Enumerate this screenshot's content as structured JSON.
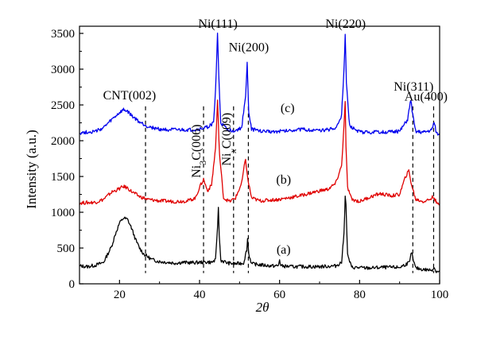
{
  "chart_data": {
    "type": "line",
    "title": "",
    "xlabel": "2θ",
    "ylabel": "Intensity (a.u.)",
    "xlim": [
      10,
      100
    ],
    "ylim": [
      0,
      3600
    ],
    "x_ticks": [
      20,
      40,
      60,
      80,
      100
    ],
    "y_ticks": [
      0,
      500,
      1000,
      1500,
      2000,
      2500,
      3000,
      3500
    ],
    "grid": false,
    "legend": "none",
    "series": [
      {
        "name": "(a)",
        "color": "#000000",
        "points": [
          [
            10,
            250
          ],
          [
            12,
            240
          ],
          [
            14,
            260
          ],
          [
            16,
            300
          ],
          [
            18,
            520
          ],
          [
            19,
            700
          ],
          [
            20,
            850
          ],
          [
            21,
            920
          ],
          [
            22,
            900
          ],
          [
            23,
            780
          ],
          [
            24,
            620
          ],
          [
            25,
            500
          ],
          [
            26,
            420
          ],
          [
            28,
            340
          ],
          [
            30,
            310
          ],
          [
            32,
            300
          ],
          [
            34,
            290
          ],
          [
            36,
            300
          ],
          [
            38,
            295
          ],
          [
            40,
            300
          ],
          [
            42,
            305
          ],
          [
            43,
            300
          ],
          [
            44,
            330
          ],
          [
            44.5,
            800
          ],
          [
            44.7,
            1050
          ],
          [
            44.9,
            700
          ],
          [
            45.3,
            330
          ],
          [
            47,
            290
          ],
          [
            49,
            280
          ],
          [
            51,
            290
          ],
          [
            51.8,
            480
          ],
          [
            52,
            630
          ],
          [
            52.3,
            420
          ],
          [
            53,
            280
          ],
          [
            56,
            260
          ],
          [
            58,
            250
          ],
          [
            59.7,
            250
          ],
          [
            60,
            340
          ],
          [
            60.3,
            250
          ],
          [
            63,
            240
          ],
          [
            66,
            240
          ],
          [
            70,
            240
          ],
          [
            74,
            250
          ],
          [
            75.5,
            300
          ],
          [
            76.1,
            700
          ],
          [
            76.4,
            1250
          ],
          [
            76.6,
            1100
          ],
          [
            77,
            400
          ],
          [
            78,
            230
          ],
          [
            82,
            220
          ],
          [
            86,
            230
          ],
          [
            90,
            230
          ],
          [
            92.5,
            300
          ],
          [
            93,
            450
          ],
          [
            93.3,
            350
          ],
          [
            94,
            220
          ],
          [
            96,
            200
          ],
          [
            98,
            190
          ],
          [
            98.6,
            230
          ],
          [
            99,
            180
          ],
          [
            100,
            170
          ]
        ]
      },
      {
        "name": "(b)",
        "color": "#e00000",
        "points": [
          [
            10,
            1130
          ],
          [
            14,
            1140
          ],
          [
            16,
            1180
          ],
          [
            18,
            1280
          ],
          [
            20,
            1330
          ],
          [
            21,
            1360
          ],
          [
            22,
            1340
          ],
          [
            23,
            1290
          ],
          [
            25,
            1220
          ],
          [
            27,
            1180
          ],
          [
            30,
            1160
          ],
          [
            34,
            1150
          ],
          [
            37,
            1160
          ],
          [
            39,
            1200
          ],
          [
            40,
            1350
          ],
          [
            41,
            1460
          ],
          [
            42,
            1300
          ],
          [
            43,
            1380
          ],
          [
            44,
            1900
          ],
          [
            44.5,
            2550
          ],
          [
            45,
            1800
          ],
          [
            46,
            1200
          ],
          [
            47.5,
            1150
          ],
          [
            49,
            1200
          ],
          [
            50.5,
            1400
          ],
          [
            51.5,
            1750
          ],
          [
            52,
            1480
          ],
          [
            53,
            1200
          ],
          [
            55,
            1160
          ],
          [
            60,
            1180
          ],
          [
            65,
            1230
          ],
          [
            70,
            1300
          ],
          [
            72,
            1320
          ],
          [
            74,
            1400
          ],
          [
            75.5,
            1650
          ],
          [
            76.1,
            2200
          ],
          [
            76.4,
            2560
          ],
          [
            76.6,
            1900
          ],
          [
            77,
            1350
          ],
          [
            78,
            1180
          ],
          [
            80,
            1150
          ],
          [
            82,
            1200
          ],
          [
            85,
            1260
          ],
          [
            88,
            1230
          ],
          [
            90,
            1250
          ],
          [
            91.5,
            1500
          ],
          [
            92.3,
            1580
          ],
          [
            93,
            1380
          ],
          [
            94,
            1180
          ],
          [
            96,
            1150
          ],
          [
            97.5,
            1180
          ],
          [
            98.5,
            1220
          ],
          [
            99.3,
            1120
          ],
          [
            100,
            1100
          ]
        ]
      },
      {
        "name": "(c)",
        "color": "#0000ee",
        "points": [
          [
            10,
            2110
          ],
          [
            14,
            2130
          ],
          [
            16,
            2180
          ],
          [
            18,
            2290
          ],
          [
            20,
            2390
          ],
          [
            21,
            2430
          ],
          [
            22,
            2410
          ],
          [
            23,
            2350
          ],
          [
            25,
            2260
          ],
          [
            27,
            2200
          ],
          [
            30,
            2160
          ],
          [
            34,
            2150
          ],
          [
            38,
            2150
          ],
          [
            40,
            2160
          ],
          [
            42,
            2190
          ],
          [
            43.5,
            2250
          ],
          [
            44,
            2700
          ],
          [
            44.5,
            3500
          ],
          [
            44.8,
            2900
          ],
          [
            45.3,
            2250
          ],
          [
            47,
            2150
          ],
          [
            49,
            2140
          ],
          [
            50.5,
            2180
          ],
          [
            51.5,
            2600
          ],
          [
            51.9,
            3100
          ],
          [
            52.3,
            2400
          ],
          [
            53,
            2160
          ],
          [
            56,
            2130
          ],
          [
            60,
            2130
          ],
          [
            65,
            2160
          ],
          [
            70,
            2140
          ],
          [
            74,
            2170
          ],
          [
            75.5,
            2350
          ],
          [
            76.1,
            3000
          ],
          [
            76.4,
            3480
          ],
          [
            76.7,
            2800
          ],
          [
            77.5,
            2200
          ],
          [
            80,
            2120
          ],
          [
            85,
            2120
          ],
          [
            90,
            2130
          ],
          [
            92,
            2300
          ],
          [
            92.8,
            2580
          ],
          [
            93.3,
            2350
          ],
          [
            94,
            2130
          ],
          [
            96,
            2120
          ],
          [
            98,
            2150
          ],
          [
            98.6,
            2260
          ],
          [
            99.2,
            2110
          ],
          [
            100,
            2080
          ]
        ]
      }
    ],
    "dashed_lines_x": [
      26.5,
      41,
      48.5,
      52.2,
      93.3,
      98.5
    ],
    "annotations": [
      {
        "text": "Ni(111)",
        "x": 44.6,
        "y": 3580
      },
      {
        "text": "Ni(200)",
        "x": 52.3,
        "y": 3250
      },
      {
        "text": "Ni(220)",
        "x": 76.5,
        "y": 3580
      },
      {
        "text": "CNT(002)",
        "x": 22.5,
        "y": 2580
      },
      {
        "text": "Ni(311)",
        "x": 93.5,
        "y": 2700
      },
      {
        "text": "Au(400)",
        "x": 96.6,
        "y": 2560
      },
      {
        "text": "(c)",
        "x": 62,
        "y": 2400
      },
      {
        "text": "(b)",
        "x": 61,
        "y": 1400
      },
      {
        "text": "(a)",
        "x": 61,
        "y": 420
      }
    ],
    "rotated_annotations": [
      {
        "base": "Ni",
        "sub": "3",
        "rest": "C(006)",
        "x": 41,
        "y": 1480
      },
      {
        "base": "Ni",
        "sub": "x",
        "rest": "C(009)",
        "x": 48.5,
        "y": 1650
      }
    ]
  }
}
